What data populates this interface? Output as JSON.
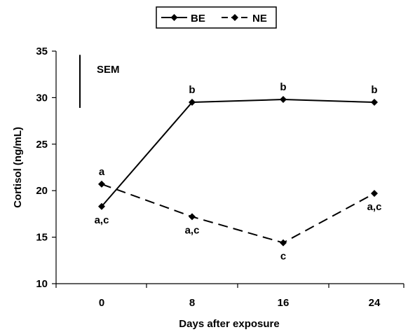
{
  "chart_data": {
    "type": "line",
    "title": "",
    "xlabel": "Days after exposure",
    "ylabel": "Cortisol (ng/mL)",
    "x": [
      0,
      8,
      16,
      24
    ],
    "ylim": [
      10,
      35
    ],
    "yticks": [
      10,
      15,
      20,
      25,
      30,
      35
    ],
    "grid": false,
    "legend_position": "top",
    "sem_label": "SEM",
    "sem_range": [
      28.9,
      34.6
    ],
    "series": [
      {
        "name": "BE",
        "linestyle": "solid",
        "values": [
          18.3,
          29.5,
          29.8,
          29.5
        ],
        "letters": [
          "a,c",
          "b",
          "b",
          "b"
        ],
        "letter_position": [
          "below",
          "above",
          "above",
          "above"
        ]
      },
      {
        "name": "NE",
        "linestyle": "dashed",
        "values": [
          20.7,
          17.2,
          14.4,
          19.7
        ],
        "letters": [
          "a",
          "a,c",
          "c",
          "a,c"
        ],
        "letter_position": [
          "above",
          "below",
          "below",
          "below"
        ]
      }
    ]
  }
}
